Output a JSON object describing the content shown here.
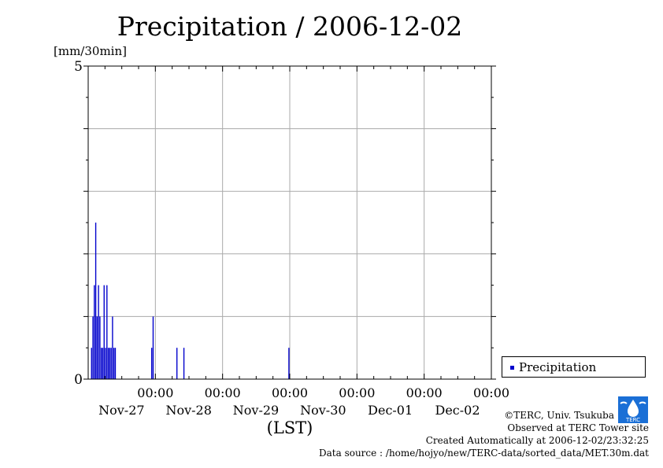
{
  "header": {
    "title": "Precipitation / 2006-12-02",
    "unit_label": "[mm/30min]"
  },
  "chart_data": {
    "type": "bar",
    "title": "Precipitation / 2006-12-02",
    "xlabel": "(LST)",
    "ylabel": "[mm/30min]",
    "ylim": [
      0,
      5
    ],
    "xlim": [
      "2006-11-26 00:00",
      "2006-12-02 00:00"
    ],
    "y_ticks": [
      0,
      5
    ],
    "x_ticks": [
      {
        "time": "00:00",
        "date": "Nov-27"
      },
      {
        "time": "00:00",
        "date": "Nov-28"
      },
      {
        "time": "00:00",
        "date": "Nov-29"
      },
      {
        "time": "00:00",
        "date": "Nov-30"
      },
      {
        "time": "00:00",
        "date": "Dec-01"
      },
      {
        "time": "00:00",
        "date": "Dec-02"
      }
    ],
    "grid": true,
    "legend_position": "bottom-right",
    "series": [
      {
        "name": "Precipitation",
        "color": "#0000cc",
        "points": [
          [
            "2006-11-26 01:00",
            0.5
          ],
          [
            "2006-11-26 01:30",
            1.0
          ],
          [
            "2006-11-26 02:00",
            1.5
          ],
          [
            "2006-11-26 02:30",
            2.5
          ],
          [
            "2006-11-26 03:00",
            1.0
          ],
          [
            "2006-11-26 03:30",
            1.5
          ],
          [
            "2006-11-26 04:00",
            1.0
          ],
          [
            "2006-11-26 04:30",
            0.5
          ],
          [
            "2006-11-26 05:00",
            0.5
          ],
          [
            "2006-11-26 05:30",
            1.5
          ],
          [
            "2006-11-26 06:00",
            0.5
          ],
          [
            "2006-11-26 06:30",
            1.5
          ],
          [
            "2006-11-26 07:00",
            0.5
          ],
          [
            "2006-11-26 07:30",
            0.5
          ],
          [
            "2006-11-26 08:00",
            0.5
          ],
          [
            "2006-11-26 08:30",
            1.0
          ],
          [
            "2006-11-26 09:00",
            0.5
          ],
          [
            "2006-11-26 09:30",
            0.5
          ],
          [
            "2006-11-26 22:30",
            0.5
          ],
          [
            "2006-11-26 23:00",
            1.0
          ],
          [
            "2006-11-27 07:30",
            0.5
          ],
          [
            "2006-11-27 10:00",
            0.5
          ],
          [
            "2006-11-28 23:30",
            0.5
          ]
        ]
      }
    ]
  },
  "legend": {
    "label": "Precipitation"
  },
  "credits": {
    "copyright": "©TERC, Univ. Tsukuba",
    "site": "Observed at TERC Tower site",
    "created": "Created Automatically at 2006-12-02/23:32:25",
    "source": "Data source : /home/hojyo/new/TERC-data/sorted_data/MET.30m.dat"
  },
  "logo": {
    "text": "TERC",
    "color": "#1a6fd6"
  }
}
